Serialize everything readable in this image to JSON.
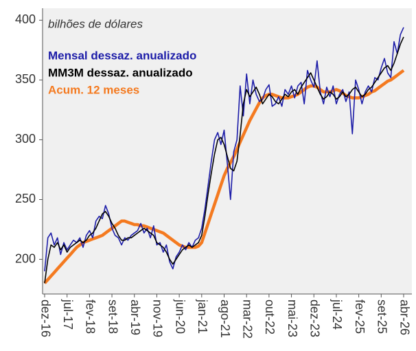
{
  "chart_data": {
    "type": "line",
    "annotation": "bilhões de dólares",
    "categories": [
      "dez-16",
      null,
      null,
      null,
      null,
      null,
      null,
      "jul-17",
      null,
      null,
      null,
      null,
      null,
      null,
      "fev-18",
      null,
      null,
      null,
      null,
      null,
      null,
      "set-18",
      null,
      null,
      null,
      null,
      null,
      null,
      "abr-19",
      null,
      null,
      null,
      null,
      null,
      null,
      "nov-19",
      null,
      null,
      null,
      null,
      null,
      null,
      "jun-20",
      null,
      null,
      null,
      null,
      null,
      null,
      "jan-21",
      null,
      null,
      null,
      null,
      null,
      null,
      "ago-21",
      null,
      null,
      null,
      null,
      null,
      null,
      "mar-22",
      null,
      null,
      null,
      null,
      null,
      null,
      "out-22",
      null,
      null,
      null,
      null,
      null,
      null,
      "mai-23",
      null,
      null,
      null,
      null,
      null,
      null,
      "dez-23",
      null,
      null,
      null,
      null,
      null,
      null,
      "jul-24",
      null,
      null,
      null,
      null,
      null,
      null,
      "fev-25",
      null,
      null,
      null,
      null,
      null,
      null,
      "set-25",
      null,
      null,
      null,
      null,
      null,
      null,
      "abr-26"
    ],
    "series": [
      {
        "name": "Mensal dessaz. anualizado",
        "color": "#1c1ca8",
        "width": 1.6,
        "values": [
          190,
          218,
          222,
          212,
          218,
          204,
          214,
          208,
          212,
          216,
          214,
          218,
          210,
          220,
          224,
          218,
          232,
          236,
          234,
          245,
          238,
          226,
          220,
          218,
          212,
          218,
          216,
          220,
          222,
          224,
          230,
          222,
          226,
          218,
          228,
          212,
          214,
          206,
          212,
          198,
          192,
          202,
          206,
          212,
          208,
          214,
          210,
          216,
          218,
          226,
          242,
          262,
          282,
          300,
          306,
          296,
          308,
          280,
          250,
          290,
          300,
          345,
          320,
          355,
          330,
          350,
          338,
          332,
          334,
          342,
          346,
          328,
          330,
          336,
          328,
          342,
          338,
          345,
          335,
          345,
          348,
          330,
          358,
          350,
          344,
          366,
          340,
          330,
          344,
          336,
          345,
          330,
          338,
          342,
          332,
          340,
          305,
          350,
          342,
          330,
          340,
          345,
          340,
          352,
          350,
          360,
          368,
          356,
          352,
          382,
          372,
          388,
          394
        ]
      },
      {
        "name": "MM3M dessaz. anualizado",
        "color": "#000000",
        "width": 1.6,
        "values": [
          180,
          200,
          212,
          210,
          214,
          208,
          212,
          206,
          210,
          212,
          214,
          216,
          214,
          216,
          220,
          222,
          226,
          232,
          238,
          240,
          236,
          230,
          226,
          220,
          216,
          216,
          218,
          218,
          220,
          222,
          224,
          226,
          224,
          222,
          220,
          214,
          212,
          210,
          206,
          200,
          196,
          200,
          204,
          208,
          210,
          212,
          210,
          212,
          214,
          220,
          236,
          255,
          272,
          288,
          300,
          302,
          296,
          286,
          276,
          274,
          282,
          304,
          330,
          342,
          336,
          340,
          344,
          338,
          330,
          334,
          338,
          336,
          332,
          330,
          334,
          338,
          336,
          340,
          342,
          338,
          344,
          348,
          352,
          356,
          350,
          344,
          338,
          334,
          336,
          340,
          338,
          334,
          336,
          340,
          336,
          338,
          342,
          344,
          340,
          336,
          338,
          342,
          344,
          348,
          352,
          356,
          360,
          362,
          358,
          364,
          372,
          380,
          386
        ]
      },
      {
        "name": "Acum. 12 meses",
        "color": "#f47a20",
        "width": 4.5,
        "values": [
          180,
          183,
          186,
          189,
          192,
          195,
          198,
          201,
          204,
          207,
          210,
          212,
          214,
          215,
          216,
          217,
          218,
          219,
          220,
          222,
          224,
          226,
          228,
          230,
          232,
          232,
          231,
          230,
          229,
          229,
          228,
          228,
          227,
          226,
          225,
          224,
          223,
          222,
          220,
          218,
          216,
          214,
          212,
          211,
          210,
          210,
          210,
          210,
          211,
          214,
          222,
          230,
          238,
          246,
          254,
          262,
          270,
          276,
          281,
          286,
          292,
          298,
          304,
          310,
          316,
          321,
          326,
          331,
          335,
          337,
          338,
          338,
          337,
          336,
          335,
          335,
          335,
          336,
          337,
          338,
          340,
          342,
          344,
          345,
          345,
          344,
          342,
          340,
          340,
          340,
          341,
          342,
          341,
          339,
          337,
          336,
          335,
          335,
          335,
          336,
          337,
          338,
          340,
          341,
          343,
          345,
          347,
          349,
          350,
          352,
          354,
          356,
          358
        ]
      }
    ],
    "ylim": [
      171,
      410
    ],
    "yticks": [
      200,
      250,
      300,
      350,
      400
    ],
    "legend": "upper left"
  }
}
